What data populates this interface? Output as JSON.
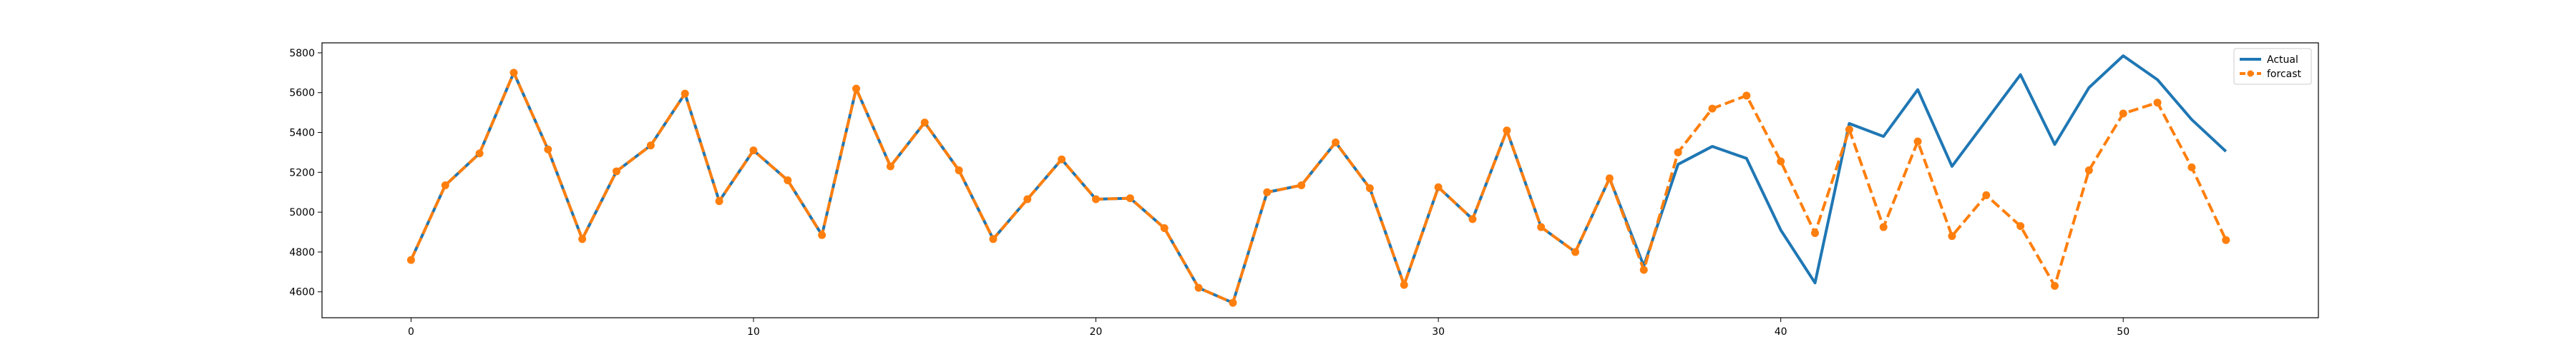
{
  "chart_data": {
    "type": "line",
    "title": "",
    "xlabel": "",
    "ylabel": "",
    "xlim": [
      -2.6,
      55.7
    ],
    "ylim": [
      4470,
      5850
    ],
    "xticks": [
      0,
      10,
      20,
      30,
      40,
      50
    ],
    "yticks": [
      4600,
      4800,
      5000,
      5200,
      5400,
      5600,
      5800
    ],
    "grid": false,
    "legend_position": "top-right",
    "series": [
      {
        "name": "Actual",
        "color": "#1f77b4",
        "style": "solid",
        "marker": "none",
        "x": [
          0,
          1,
          2,
          3,
          4,
          5,
          6,
          7,
          8,
          9,
          10,
          11,
          12,
          13,
          14,
          15,
          16,
          17,
          18,
          19,
          20,
          21,
          22,
          23,
          24,
          25,
          26,
          27,
          28,
          29,
          30,
          31,
          32,
          33,
          34,
          35,
          36,
          37,
          38,
          39,
          40,
          41,
          42,
          43,
          44,
          45,
          46,
          47,
          48,
          49,
          50,
          51,
          52,
          53
        ],
        "y": [
          4760,
          5135,
          5295,
          5700,
          5315,
          4865,
          5205,
          5335,
          5595,
          5055,
          5310,
          5160,
          4885,
          5620,
          5230,
          5450,
          5210,
          4865,
          5065,
          5265,
          5065,
          5070,
          4920,
          4620,
          4545,
          5100,
          5135,
          5350,
          5120,
          4635,
          5125,
          4965,
          5410,
          4925,
          4800,
          5170,
          4730,
          5240,
          5330,
          5270,
          4910,
          4645,
          5445,
          5380,
          5615,
          5230,
          5460,
          5690,
          5340,
          5625,
          5785,
          5665,
          5465,
          5305
        ]
      },
      {
        "name": "forcast",
        "color": "#ff7f0e",
        "style": "dashed",
        "marker": "circle",
        "x": [
          0,
          1,
          2,
          3,
          4,
          5,
          6,
          7,
          8,
          9,
          10,
          11,
          12,
          13,
          14,
          15,
          16,
          17,
          18,
          19,
          20,
          21,
          22,
          23,
          24,
          25,
          26,
          27,
          28,
          29,
          30,
          31,
          32,
          33,
          34,
          35,
          36,
          37,
          38,
          39,
          40,
          41,
          42,
          43,
          44,
          45,
          46,
          47,
          48,
          49,
          50,
          51,
          52,
          53
        ],
        "y": [
          4760,
          5135,
          5295,
          5700,
          5315,
          4865,
          5205,
          5335,
          5595,
          5055,
          5310,
          5160,
          4885,
          5620,
          5230,
          5450,
          5210,
          4865,
          5065,
          5265,
          5065,
          5070,
          4920,
          4620,
          4545,
          5100,
          5135,
          5350,
          5120,
          4635,
          5125,
          4965,
          5410,
          4925,
          4800,
          5170,
          4710,
          5300,
          5520,
          5585,
          5255,
          4895,
          5415,
          4925,
          5355,
          4880,
          5085,
          4930,
          4630,
          5210,
          5495,
          5550,
          5225,
          4860
        ]
      }
    ]
  }
}
